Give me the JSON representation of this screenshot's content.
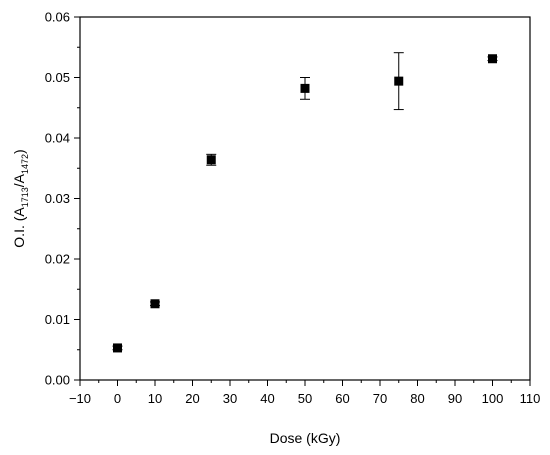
{
  "chart_data": {
    "type": "scatter",
    "title": "",
    "xlabel": "Dose (kGy)",
    "ylabel": {
      "prefix": "O.I. (A",
      "sub1": "1713",
      "mid": "/A",
      "sub2": "1472",
      "suffix": ")"
    },
    "xlim": [
      -10,
      110
    ],
    "ylim": [
      0,
      0.06
    ],
    "xticks": [
      -10,
      0,
      10,
      20,
      30,
      40,
      50,
      60,
      70,
      80,
      90,
      100,
      110
    ],
    "xtick_labels": [
      "−10",
      "0",
      "10",
      "20",
      "30",
      "40",
      "50",
      "60",
      "70",
      "80",
      "90",
      "100",
      "110"
    ],
    "yticks": [
      0,
      0.01,
      0.02,
      0.03,
      0.04,
      0.05,
      0.06
    ],
    "ytick_labels": [
      "0.00",
      "0.01",
      "0.02",
      "0.03",
      "0.04",
      "0.05",
      "0.06"
    ],
    "grid": false,
    "legend": "none",
    "marker": "square",
    "marker_color": "#000000",
    "series": [
      {
        "x": [
          0,
          10,
          25,
          50,
          75,
          100
        ],
        "y": [
          0.0053,
          0.0126,
          0.0364,
          0.0482,
          0.0494,
          0.0531
        ],
        "error": [
          0.0003,
          0.0003,
          0.0009,
          0.0018,
          0.0047,
          0.0003
        ]
      }
    ]
  }
}
